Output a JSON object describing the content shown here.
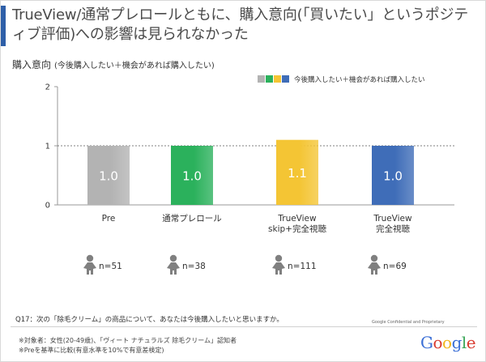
{
  "title": "TrueView/通常プレロールともに、購入意向(「買いたい」というポジティブ評価)への影響は見られなかった",
  "chart_title": "購入意向",
  "chart_subtitle": "(今後購入したい＋機会があれば購入したい)",
  "chart_data": {
    "type": "bar",
    "title": "購入意向",
    "subtitle": "(今後購入したい＋機会があれば購入したい)",
    "categories": [
      "Pre",
      "通常プレロール",
      "TrueView\nskip+完全視聴",
      "TrueView\n完全視聴"
    ],
    "values": [
      1.0,
      1.0,
      1.1,
      1.0
    ],
    "value_labels": [
      "1.0",
      "1.0",
      "1.1",
      "1.0"
    ],
    "ylim": [
      0,
      2
    ],
    "yticks": [
      0,
      1,
      2
    ],
    "ytick_labels": [
      "0",
      "1",
      "2"
    ],
    "grid": "dashed line at 1",
    "legend": {
      "label": "今後購入したい＋機会があれば購入したい",
      "placement": "top-right"
    },
    "sample_sizes": [
      "n=51",
      "n=38",
      "n=111",
      "n=69"
    ]
  },
  "colors": {
    "bars": [
      "#b3b3b3",
      "#2bb15c",
      "#f4c534",
      "#3f6db8"
    ],
    "accent": "#2e5fa8",
    "person_icon": "#808080"
  },
  "icons": [
    "person-icon"
  ],
  "question": "Q17：次の「除毛クリーム」の商品について、あなたは今後購入したいと思いますか。",
  "confidential": "Google Confidential and Proprietary",
  "footnotes": [
    "※対象者：女性(20-49歳)、「ヴィート ナチュラルズ 除毛クリーム」認知者",
    "※Preを基準に比較(有意水準を10%で有意差検定)"
  ],
  "logo": {
    "letters": [
      "G",
      "o",
      "o",
      "g",
      "l",
      "e"
    ],
    "colors": [
      "#3b6fd6",
      "#d93b2f",
      "#f2b71c",
      "#3b6fd6",
      "#3aa657",
      "#d93b2f"
    ]
  }
}
